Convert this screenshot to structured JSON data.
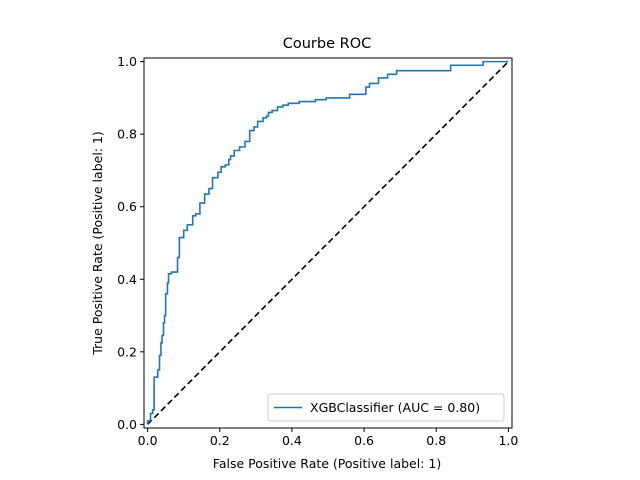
{
  "chart_data": {
    "type": "line",
    "title": "Courbe ROC",
    "xlabel": "False Positive Rate (Positive label: 1)",
    "ylabel": "True Positive Rate (Positive label: 1)",
    "xlim": [
      -0.01,
      1.01
    ],
    "ylim": [
      -0.01,
      1.01
    ],
    "xticks": [
      0.0,
      0.2,
      0.4,
      0.6,
      0.8,
      1.0
    ],
    "yticks": [
      0.0,
      0.2,
      0.4,
      0.6,
      0.8,
      1.0
    ],
    "xtick_labels": [
      "0.0",
      "0.2",
      "0.4",
      "0.6",
      "0.8",
      "1.0"
    ],
    "ytick_labels": [
      "0.0",
      "0.2",
      "0.4",
      "0.6",
      "0.8",
      "1.0"
    ],
    "grid": false,
    "legend_position": "lower-right",
    "series": [
      {
        "name": "XGBClassifier (AUC = 0.80)",
        "color": "#1f77b4",
        "step": true,
        "x": [
          0.0,
          0.0,
          0.008,
          0.008,
          0.014,
          0.014,
          0.018,
          0.018,
          0.028,
          0.028,
          0.033,
          0.033,
          0.037,
          0.037,
          0.04,
          0.04,
          0.044,
          0.044,
          0.047,
          0.047,
          0.05,
          0.05,
          0.055,
          0.055,
          0.058,
          0.058,
          0.066,
          0.066,
          0.083,
          0.083,
          0.088,
          0.088,
          0.1,
          0.1,
          0.11,
          0.11,
          0.125,
          0.125,
          0.133,
          0.133,
          0.145,
          0.145,
          0.158,
          0.158,
          0.17,
          0.17,
          0.18,
          0.18,
          0.195,
          0.195,
          0.204,
          0.204,
          0.215,
          0.215,
          0.225,
          0.225,
          0.23,
          0.23,
          0.24,
          0.24,
          0.255,
          0.255,
          0.27,
          0.27,
          0.283,
          0.283,
          0.295,
          0.295,
          0.305,
          0.305,
          0.32,
          0.32,
          0.33,
          0.33,
          0.335,
          0.335,
          0.345,
          0.345,
          0.36,
          0.36,
          0.375,
          0.375,
          0.39,
          0.39,
          0.42,
          0.42,
          0.465,
          0.465,
          0.495,
          0.495,
          0.56,
          0.56,
          0.605,
          0.605,
          0.615,
          0.615,
          0.64,
          0.64,
          0.665,
          0.665,
          0.69,
          0.69,
          0.84,
          0.84,
          0.93,
          0.93,
          1.0
        ],
        "y": [
          0.0,
          0.01,
          0.01,
          0.03,
          0.03,
          0.04,
          0.04,
          0.13,
          0.13,
          0.15,
          0.15,
          0.19,
          0.19,
          0.225,
          0.225,
          0.245,
          0.245,
          0.28,
          0.28,
          0.3,
          0.3,
          0.36,
          0.36,
          0.39,
          0.39,
          0.415,
          0.415,
          0.42,
          0.42,
          0.46,
          0.46,
          0.515,
          0.515,
          0.535,
          0.535,
          0.55,
          0.55,
          0.575,
          0.575,
          0.58,
          0.58,
          0.61,
          0.61,
          0.635,
          0.635,
          0.65,
          0.65,
          0.68,
          0.68,
          0.695,
          0.695,
          0.71,
          0.71,
          0.715,
          0.715,
          0.73,
          0.73,
          0.74,
          0.74,
          0.755,
          0.755,
          0.765,
          0.765,
          0.78,
          0.78,
          0.81,
          0.81,
          0.82,
          0.82,
          0.835,
          0.835,
          0.845,
          0.845,
          0.85,
          0.85,
          0.86,
          0.86,
          0.865,
          0.865,
          0.875,
          0.875,
          0.88,
          0.88,
          0.885,
          0.885,
          0.89,
          0.89,
          0.895,
          0.895,
          0.9,
          0.9,
          0.91,
          0.91,
          0.93,
          0.93,
          0.94,
          0.94,
          0.955,
          0.955,
          0.965,
          0.965,
          0.975,
          0.975,
          0.99,
          0.99,
          1.0,
          1.0
        ]
      },
      {
        "name": "",
        "color": "#000000",
        "dashed": true,
        "x": [
          0.0,
          1.0
        ],
        "y": [
          0.0,
          1.0
        ]
      }
    ]
  }
}
